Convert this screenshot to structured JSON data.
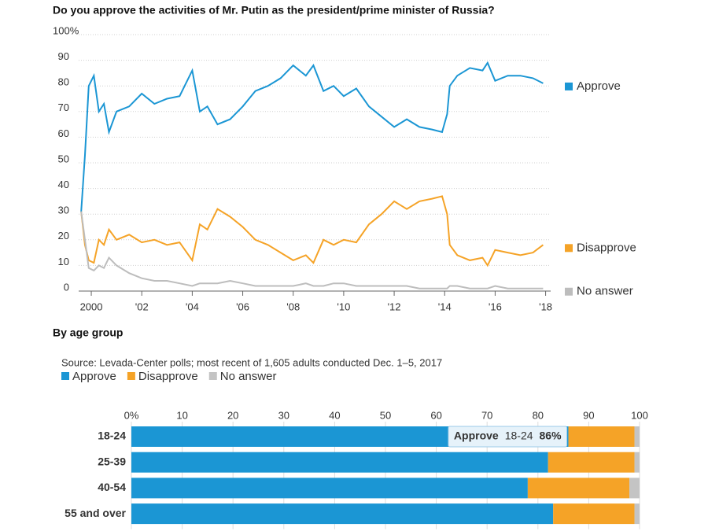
{
  "chart_data": [
    {
      "type": "line",
      "title": "Do you approve the activities of Mr. Putin as the president/prime minister of Russia?",
      "x": [
        1999.6,
        1999.75,
        1999.9,
        2000.1,
        2000.3,
        2000.5,
        2000.7,
        2001,
        2001.5,
        2002,
        2002.5,
        2003,
        2003.5,
        2004,
        2004.3,
        2004.6,
        2005,
        2005.5,
        2006,
        2006.5,
        2007,
        2007.5,
        2008,
        2008.5,
        2008.8,
        2009.2,
        2009.6,
        2010,
        2010.5,
        2011,
        2011.5,
        2012,
        2012.5,
        2013,
        2013.5,
        2013.9,
        2014.1,
        2014.2,
        2014.5,
        2015,
        2015.5,
        2015.7,
        2016,
        2016.5,
        2017,
        2017.5,
        2017.9
      ],
      "series": [
        {
          "name": "Approve",
          "color": "#1b96d4",
          "values": [
            31,
            53,
            80,
            84,
            70,
            73,
            62,
            70,
            72,
            77,
            73,
            75,
            76,
            86,
            70,
            72,
            65,
            67,
            72,
            78,
            80,
            83,
            88,
            84,
            88,
            78,
            80,
            76,
            79,
            72,
            68,
            64,
            67,
            64,
            63,
            62,
            69,
            80,
            84,
            87,
            86,
            89,
            82,
            84,
            84,
            83,
            81
          ]
        },
        {
          "name": "Disapprove",
          "color": "#f5a327",
          "values": [
            31,
            18,
            12,
            11,
            20,
            18,
            24,
            20,
            22,
            19,
            20,
            18,
            19,
            12,
            26,
            24,
            32,
            29,
            25,
            20,
            18,
            15,
            12,
            14,
            11,
            20,
            18,
            20,
            19,
            26,
            30,
            35,
            32,
            35,
            36,
            37,
            30,
            18,
            14,
            12,
            13,
            10,
            16,
            15,
            14,
            15,
            18
          ]
        },
        {
          "name": "No answer",
          "color": "#bdbdbd",
          "values": [
            31,
            20,
            9,
            8,
            10,
            9,
            13,
            10,
            7,
            5,
            4,
            4,
            3,
            2,
            3,
            3,
            3,
            4,
            3,
            2,
            2,
            2,
            2,
            3,
            2,
            2,
            3,
            3,
            2,
            2,
            2,
            2,
            2,
            1,
            1,
            1,
            1,
            2,
            2,
            1,
            1,
            1,
            2,
            1,
            1,
            1,
            1
          ]
        }
      ],
      "xlim": [
        1999.5,
        2018.2
      ],
      "xticks": [
        2000,
        {
          "value": 2002,
          "label": "'02"
        },
        {
          "value": 2004,
          "label": "'04"
        },
        {
          "value": 2006,
          "label": "'06"
        },
        {
          "value": 2008,
          "label": "'08"
        },
        {
          "value": 2010,
          "label": "'10"
        },
        {
          "value": 2012,
          "label": "'12"
        },
        {
          "value": 2014,
          "label": "'14"
        },
        {
          "value": 2016,
          "label": "'16"
        },
        {
          "value": 2018,
          "label": "'18"
        }
      ],
      "ylim": [
        0,
        100
      ],
      "yticks": [
        0,
        10,
        20,
        30,
        40,
        50,
        60,
        70,
        80,
        90,
        {
          "value": 100,
          "label": "100%"
        }
      ],
      "grid": true,
      "legend": "right"
    },
    {
      "type": "bar",
      "orientation": "horizontal",
      "stacked": true,
      "title": "By age group",
      "note": "Source: Levada-Center polls; most recent of 1,605 adults conducted Dec. 1–5, 2017",
      "categories": [
        "18-24",
        "25-39",
        "40-54",
        "55 and over"
      ],
      "series": [
        {
          "name": "Approve",
          "color": "#1b96d4",
          "values": [
            86,
            82,
            78,
            83
          ]
        },
        {
          "name": "Disapprove",
          "color": "#f5a327",
          "values": [
            13,
            17,
            20,
            16
          ]
        },
        {
          "name": "No answer",
          "color": "#c4c4c4",
          "values": [
            1,
            1,
            2,
            1
          ]
        }
      ],
      "xlim": [
        0,
        100
      ],
      "xticks": [
        {
          "value": 0,
          "label": "0%"
        },
        10,
        20,
        30,
        40,
        50,
        60,
        70,
        80,
        90,
        100
      ],
      "legend": "top-left",
      "tooltip": {
        "series": "Approve",
        "category": "18-24",
        "label": "86%"
      }
    }
  ]
}
